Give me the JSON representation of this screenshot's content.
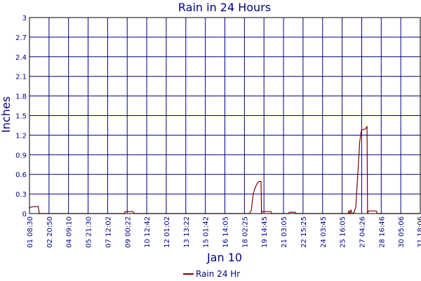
{
  "chart_data": {
    "type": "line",
    "title": "Rain in 24 Hours",
    "ylabel": "Inches",
    "xlabel": "Jan 10",
    "ylim": [
      0,
      3
    ],
    "yticks": [
      "0",
      "0.3",
      "0.6",
      "0.9",
      "1.2",
      "1.5",
      "1.8",
      "2.1",
      "2.4",
      "2.7",
      "3"
    ],
    "xticks": [
      "01 08:30",
      "02 20:50",
      "04 09:10",
      "05 21:30",
      "07 12:02",
      "09 00:22",
      "10 12:42",
      "12 01:02",
      "13 13:22",
      "15 01:42",
      "16 14:05",
      "18 02:25",
      "19 14:45",
      "21 03:05",
      "22 15:25",
      "24 03:45",
      "25 16:05",
      "27 04:26",
      "28 16:46",
      "30 05:06",
      "31 18:06"
    ],
    "grid": true,
    "legend_position": "bottom",
    "series": [
      {
        "name": "Rain 24 Hr",
        "color": "#800000",
        "points": [
          [
            0.0,
            0.08
          ],
          [
            0.15,
            0.1
          ],
          [
            0.9,
            0.11
          ],
          [
            1.0,
            0.0
          ],
          [
            9.7,
            0.0
          ],
          [
            9.8,
            0.03
          ],
          [
            10.6,
            0.03
          ],
          [
            10.7,
            0.0
          ],
          [
            22.5,
            0.0
          ],
          [
            22.7,
            0.05
          ],
          [
            22.9,
            0.3
          ],
          [
            23.1,
            0.4
          ],
          [
            23.3,
            0.46
          ],
          [
            23.5,
            0.49
          ],
          [
            23.7,
            0.49
          ],
          [
            23.75,
            0.0
          ],
          [
            23.8,
            0.03
          ],
          [
            24.7,
            0.03
          ],
          [
            24.8,
            0.0
          ],
          [
            26.5,
            0.0
          ],
          [
            26.6,
            0.02
          ],
          [
            27.2,
            0.02
          ],
          [
            27.3,
            0.0
          ],
          [
            32.6,
            0.0
          ],
          [
            32.7,
            0.04
          ],
          [
            32.8,
            0.0
          ],
          [
            32.9,
            0.06
          ],
          [
            33.0,
            0.0
          ],
          [
            33.2,
            0.01
          ],
          [
            33.4,
            0.1
          ],
          [
            33.6,
            0.6
          ],
          [
            33.8,
            1.1
          ],
          [
            33.95,
            1.26
          ],
          [
            34.05,
            1.28
          ],
          [
            34.3,
            1.29
          ],
          [
            34.45,
            1.31
          ],
          [
            34.55,
            1.33
          ],
          [
            34.6,
            0.0
          ],
          [
            34.7,
            0.04
          ],
          [
            35.5,
            0.04
          ],
          [
            35.6,
            0.0
          ],
          [
            40.0,
            0.0
          ]
        ]
      }
    ]
  }
}
